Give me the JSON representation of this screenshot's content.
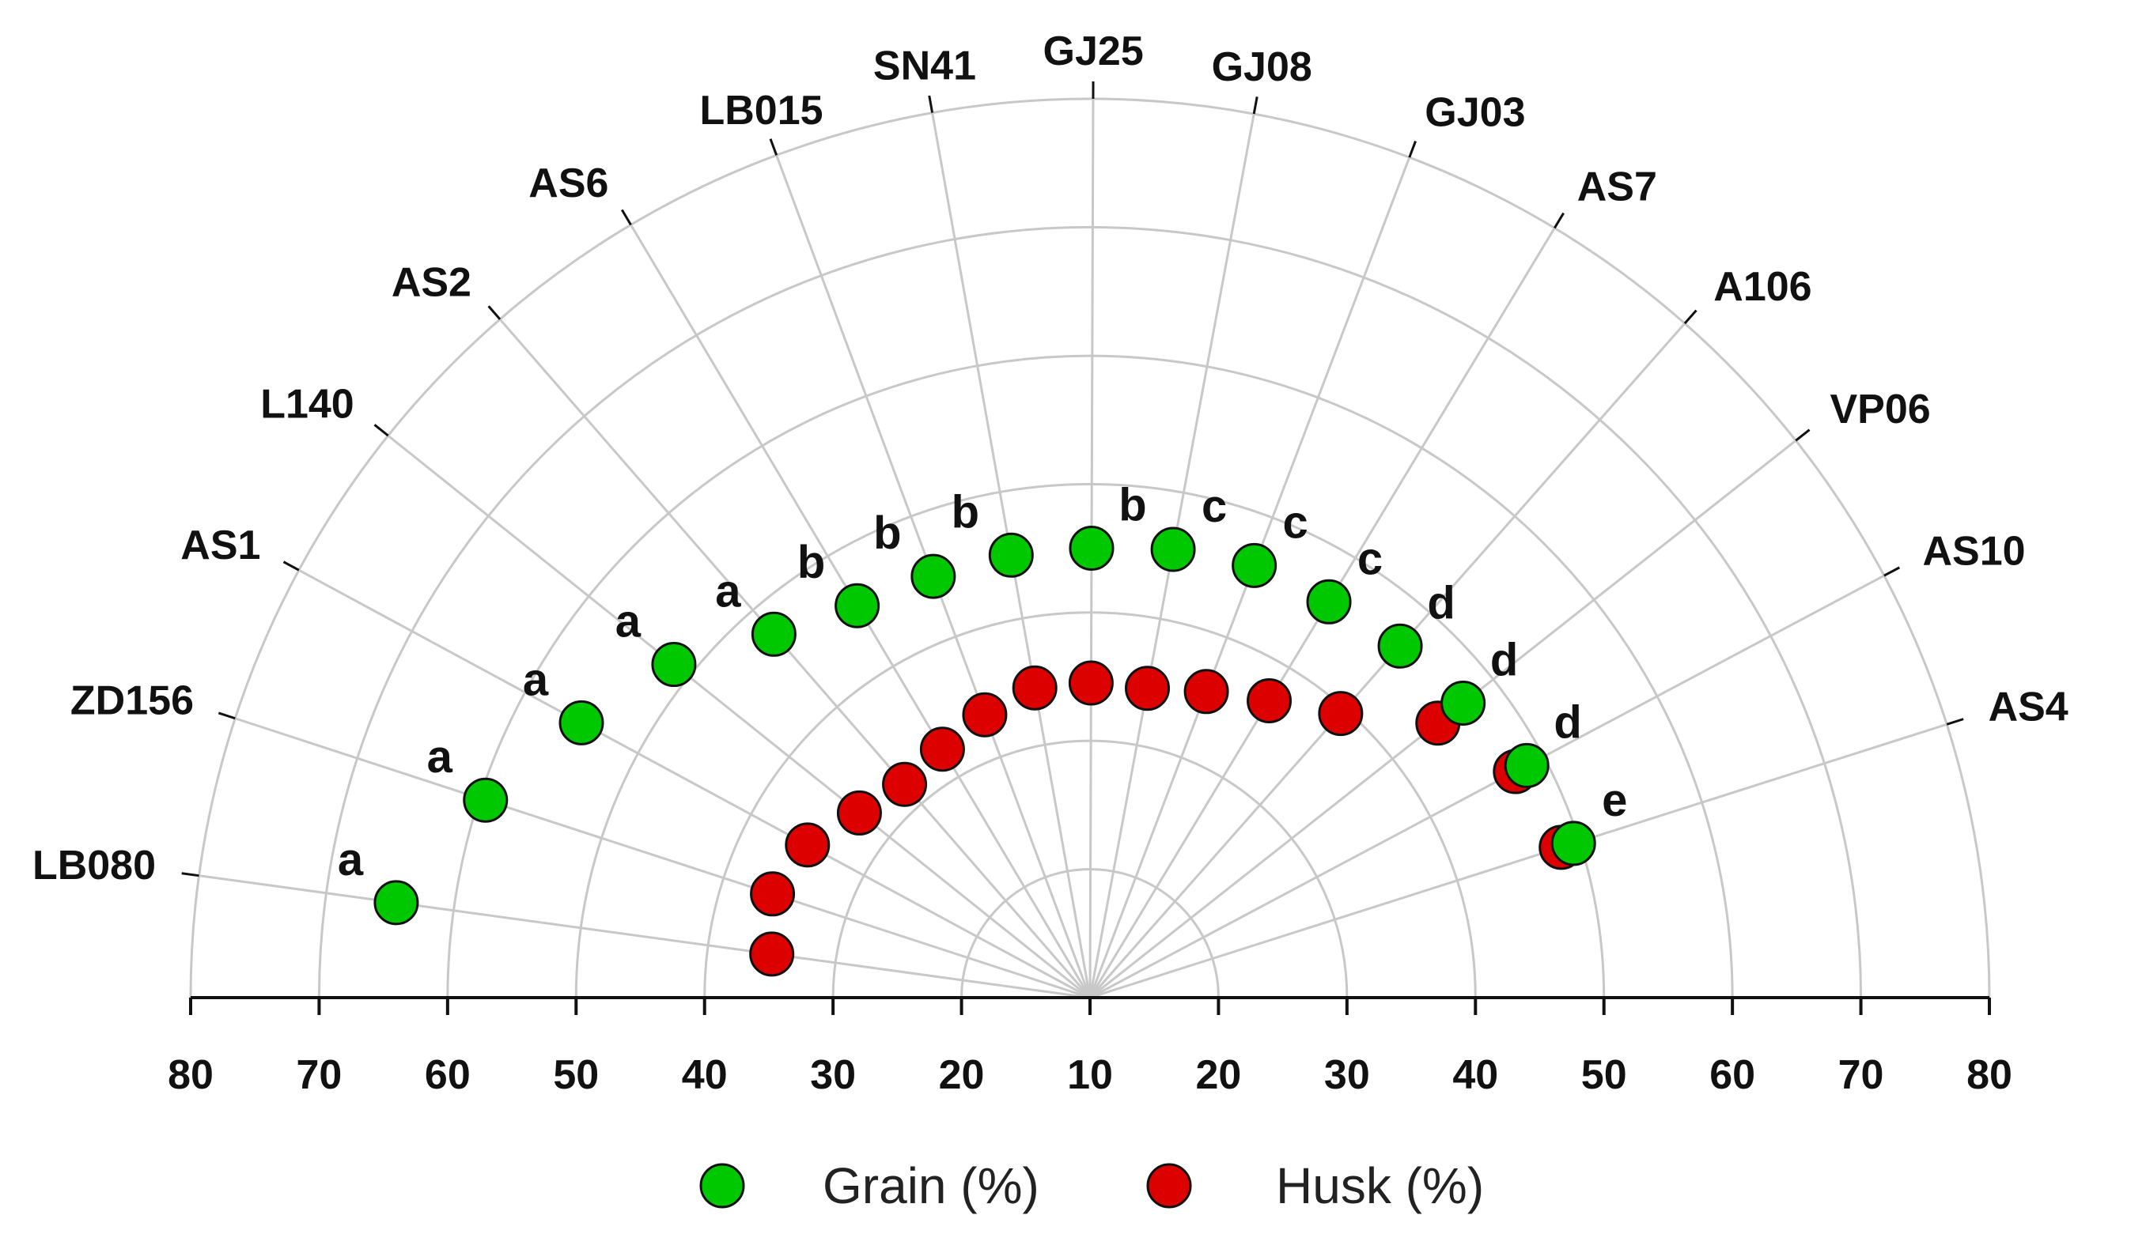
{
  "chart_data": {
    "type": "scatter",
    "subtype": "polar-half",
    "title": "",
    "radial_axis": {
      "range": [
        10,
        80
      ],
      "ticks": [
        80,
        70,
        60,
        50,
        40,
        30,
        20,
        10,
        20,
        30,
        40,
        50,
        60,
        70,
        80
      ],
      "grid": true
    },
    "categories": [
      "LB080",
      "ZD156",
      "AS1",
      "L140",
      "AS2",
      "AS6",
      "LB015",
      "SN41",
      "GJ25",
      "GJ08",
      "GJ03",
      "AS7",
      "A106",
      "VP06",
      "AS10",
      "AS4"
    ],
    "series": [
      {
        "name": "Grain (%)",
        "color": "#00c800",
        "values": [
          64.5,
          59.5,
          55.0,
          51.5,
          47.5,
          45.5,
          45.0,
          45.0,
          45.0,
          45.5,
          46.0,
          46.0,
          46.5,
          47.0,
          48.5,
          49.5
        ]
      },
      {
        "name": "Husk (%)",
        "color": "#dd0000",
        "values": [
          35.0,
          36.0,
          35.0,
          33.0,
          32.0,
          32.5,
          33.5,
          34.5,
          34.5,
          34.5,
          35.5,
          37.0,
          39.5,
          44.5,
          47.5,
          48.5
        ]
      }
    ],
    "significance_letters": [
      "a",
      "a",
      "a",
      "a",
      "a",
      "b",
      "b",
      "b",
      "b",
      "c",
      "c",
      "c",
      "d",
      "d",
      "d",
      "e"
    ],
    "legend": {
      "placement": "bottom",
      "items": [
        "Grain (%)",
        "Husk (%)"
      ]
    }
  }
}
